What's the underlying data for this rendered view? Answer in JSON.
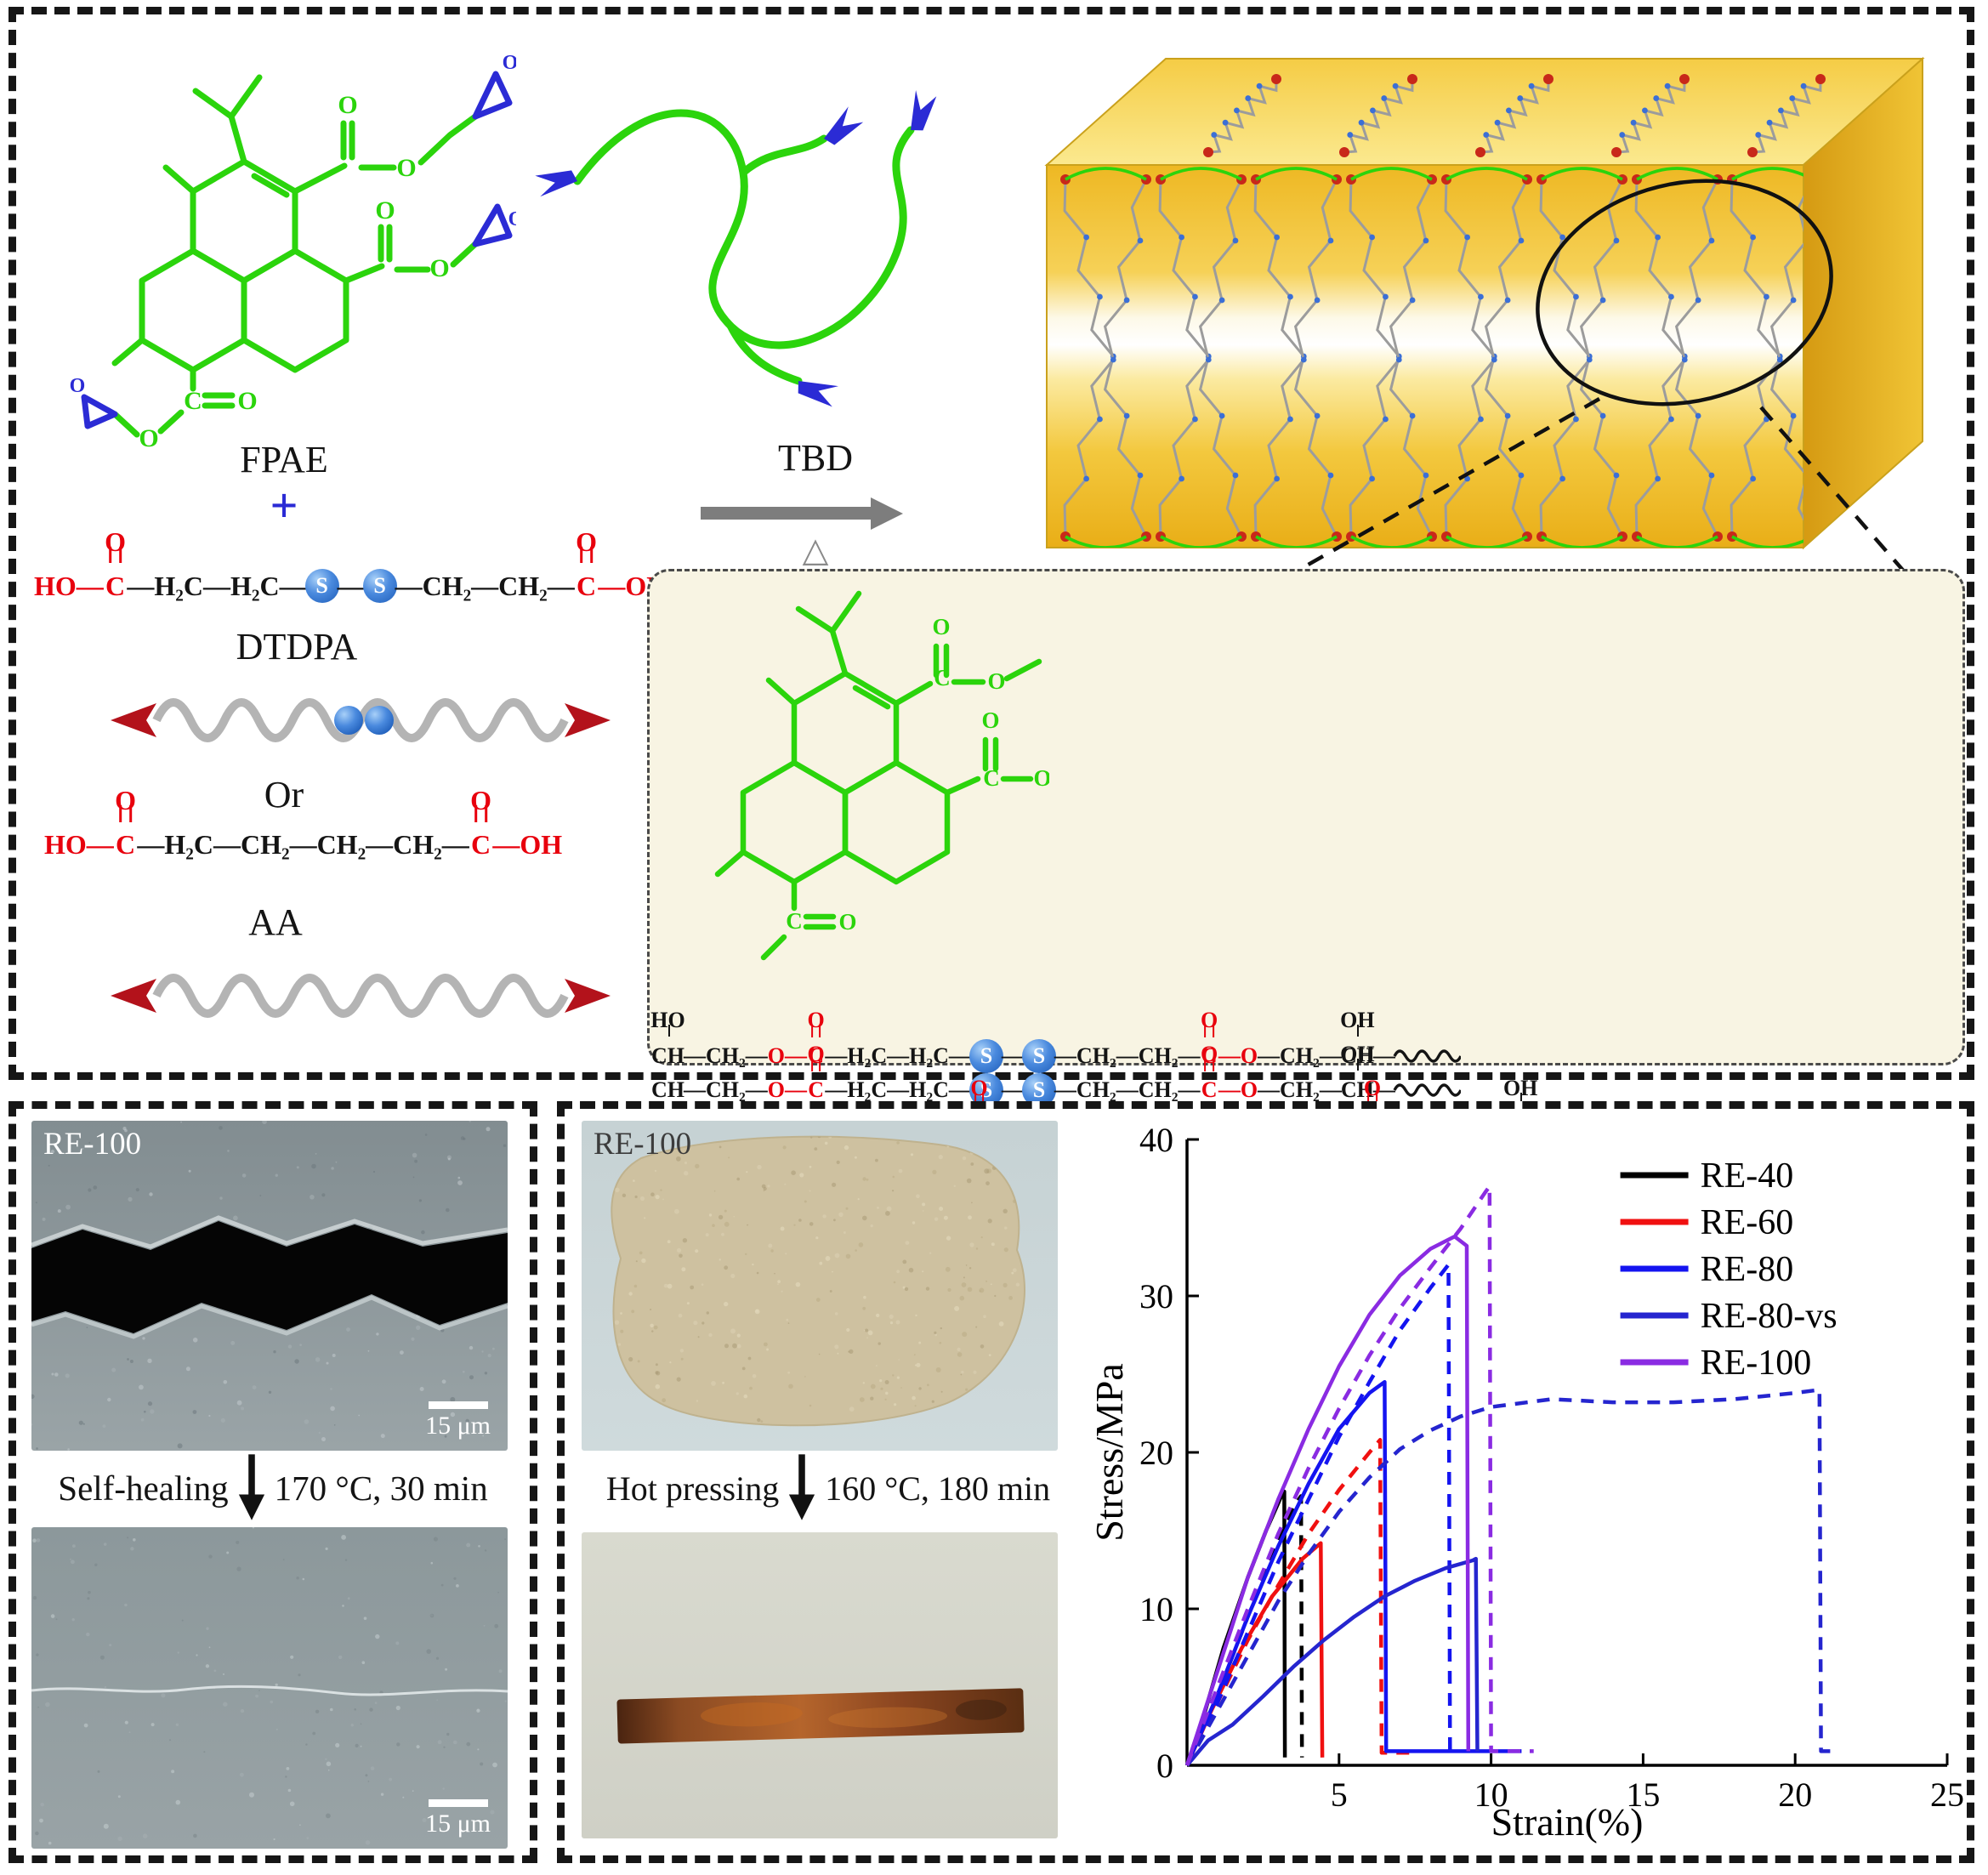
{
  "figure": {
    "top": {
      "fpae_label": "FPAE",
      "plus": "+",
      "tbd_label": "TBD",
      "heat_symbol": "△",
      "dtdpa_label": "DTDPA",
      "or_label": "Or",
      "aa_label": "AA"
    },
    "atoms": {
      "o": "O",
      "c": "C",
      "oh": "OH",
      "ho": "HO",
      "s": "S",
      "bond": "—"
    },
    "formulas": {
      "dtdpa": [
        {
          "k": "tx",
          "t": "HO",
          "c": "r"
        },
        {
          "k": "b",
          "c": "r"
        },
        {
          "k": "co",
          "c": "r"
        },
        {
          "k": "b"
        },
        {
          "k": "tx",
          "t": "H₂C"
        },
        {
          "k": "b"
        },
        {
          "k": "tx",
          "t": "H₂C"
        },
        {
          "k": "b"
        },
        {
          "k": "s"
        },
        {
          "k": "b"
        },
        {
          "k": "s"
        },
        {
          "k": "b"
        },
        {
          "k": "tx",
          "t": "CH₂"
        },
        {
          "k": "b"
        },
        {
          "k": "tx",
          "t": "CH₂"
        },
        {
          "k": "b"
        },
        {
          "k": "co",
          "c": "r"
        },
        {
          "k": "b",
          "c": "r"
        },
        {
          "k": "tx",
          "t": "OH",
          "c": "r"
        }
      ],
      "aa": [
        {
          "k": "tx",
          "t": "HO",
          "c": "r"
        },
        {
          "k": "b",
          "c": "r"
        },
        {
          "k": "co",
          "c": "r"
        },
        {
          "k": "b"
        },
        {
          "k": "tx",
          "t": "H₂C"
        },
        {
          "k": "b"
        },
        {
          "k": "tx",
          "t": "CH₂"
        },
        {
          "k": "b"
        },
        {
          "k": "tx",
          "t": "CH₂"
        },
        {
          "k": "b"
        },
        {
          "k": "tx",
          "t": "CH₂"
        },
        {
          "k": "b"
        },
        {
          "k": "co",
          "c": "r"
        },
        {
          "k": "b",
          "c": "r"
        },
        {
          "k": "tx",
          "t": "OH",
          "c": "r"
        }
      ],
      "chain1": [
        {
          "k": "ohv",
          "d": "up",
          "l": "HO",
          "t": "CH"
        },
        {
          "k": "b"
        },
        {
          "k": "tx",
          "t": "CH₂"
        },
        {
          "k": "b"
        },
        {
          "k": "tx",
          "t": "O",
          "c": "r"
        },
        {
          "k": "b",
          "c": "r"
        },
        {
          "k": "co",
          "c": "r"
        },
        {
          "k": "b"
        },
        {
          "k": "tx",
          "t": "H₂C"
        },
        {
          "k": "b"
        },
        {
          "k": "tx",
          "t": "H₂C"
        },
        {
          "k": "b"
        },
        {
          "k": "s"
        },
        {
          "k": "b"
        },
        {
          "k": "s"
        },
        {
          "k": "b"
        },
        {
          "k": "tx",
          "t": "CH₂"
        },
        {
          "k": "b"
        },
        {
          "k": "tx",
          "t": "CH₂"
        },
        {
          "k": "b"
        },
        {
          "k": "co",
          "c": "r"
        },
        {
          "k": "b",
          "c": "r"
        },
        {
          "k": "tx",
          "t": "O",
          "c": "r"
        },
        {
          "k": "b"
        },
        {
          "k": "tx",
          "t": "CH₂"
        },
        {
          "k": "b"
        },
        {
          "k": "ohv",
          "d": "up",
          "l": "OH",
          "t": "CH"
        },
        {
          "k": "b"
        },
        {
          "k": "wave"
        }
      ],
      "chain2": [
        {
          "k": "ohv",
          "d": "down",
          "l": "HO",
          "t": "CH"
        },
        {
          "k": "b"
        },
        {
          "k": "tx",
          "t": "CH₂"
        },
        {
          "k": "b"
        },
        {
          "k": "tx",
          "t": "O",
          "c": "r"
        },
        {
          "k": "b",
          "c": "r"
        },
        {
          "k": "co",
          "c": "r"
        },
        {
          "k": "b"
        },
        {
          "k": "tx",
          "t": "H₂C"
        },
        {
          "k": "b"
        },
        {
          "k": "tx",
          "t": "H₂C"
        },
        {
          "k": "b"
        },
        {
          "k": "s"
        },
        {
          "k": "b"
        },
        {
          "k": "s"
        },
        {
          "k": "b"
        },
        {
          "k": "tx",
          "t": "CH₂"
        },
        {
          "k": "b"
        },
        {
          "k": "tx",
          "t": "CH₂"
        },
        {
          "k": "b"
        },
        {
          "k": "co",
          "c": "r"
        },
        {
          "k": "b",
          "c": "r"
        },
        {
          "k": "tx",
          "t": "O",
          "c": "r"
        },
        {
          "k": "b"
        },
        {
          "k": "tx",
          "t": "CH₂"
        },
        {
          "k": "b"
        },
        {
          "k": "ohv",
          "d": "up",
          "l": "OH",
          "t": "CH"
        },
        {
          "k": "b"
        },
        {
          "k": "wave"
        }
      ],
      "chain3": [
        {
          "k": "tx",
          "t": "O",
          "c": "g"
        },
        {
          "k": "b"
        },
        {
          "k": "tx",
          "t": "H₂C"
        },
        {
          "k": "b"
        },
        {
          "k": "tx",
          "t": "CH₂"
        },
        {
          "k": "b"
        },
        {
          "k": "ohv",
          "d": "down",
          "l": "HO",
          "t": "CH"
        },
        {
          "k": "b"
        },
        {
          "k": "tx",
          "t": "CH₂"
        },
        {
          "k": "b"
        },
        {
          "k": "tx",
          "t": "O",
          "c": "r"
        },
        {
          "k": "b",
          "c": "r"
        },
        {
          "k": "co",
          "c": "r"
        },
        {
          "k": "b"
        },
        {
          "k": "tx",
          "t": "H₂C"
        },
        {
          "k": "b"
        },
        {
          "k": "tx",
          "t": "H₂C"
        },
        {
          "k": "b"
        },
        {
          "k": "s"
        },
        {
          "k": "b"
        },
        {
          "k": "s"
        },
        {
          "k": "b"
        },
        {
          "k": "tx",
          "t": "CH₂"
        },
        {
          "k": "b"
        },
        {
          "k": "tx",
          "t": "CH₂"
        },
        {
          "k": "b"
        },
        {
          "k": "co",
          "c": "r"
        },
        {
          "k": "b",
          "c": "r"
        },
        {
          "k": "tx",
          "t": "O",
          "c": "r"
        },
        {
          "k": "b"
        },
        {
          "k": "tx",
          "t": "CH₂"
        },
        {
          "k": "b"
        },
        {
          "k": "ohv",
          "d": "up",
          "l": "OH",
          "t": "CH"
        },
        {
          "k": "b"
        },
        {
          "k": "wave"
        }
      ]
    },
    "bottom_left": {
      "sem_label": "RE-100",
      "scale_bar": "15 μm",
      "healing_label": "Self-healing",
      "healing_condition": "170 °C, 30 min"
    },
    "bottom_right": {
      "photo_label": "RE-100",
      "pressing_label": "Hot pressing",
      "pressing_condition": "160 °C, 180 min"
    }
  },
  "colors": {
    "green": "#2bd40c",
    "blue": "#2b2bd5",
    "red": "#e8000d",
    "dark_red": "#b3121b",
    "sulfur_blue": "#2f6fd0",
    "network_yellow": "#f2c12e"
  },
  "chart_data": {
    "type": "line",
    "title": "",
    "xlabel": "Strain(%)",
    "ylabel": "Stress/MPa",
    "xlim": [
      0,
      25
    ],
    "ylim": [
      0,
      40
    ],
    "x_ticks": [
      5,
      10,
      15,
      20,
      25
    ],
    "y_ticks": [
      0,
      10,
      20,
      30,
      40
    ],
    "grid": false,
    "legend_position": "top-right",
    "legend": [
      {
        "label": "RE-40",
        "color": "#000000"
      },
      {
        "label": "RE-60",
        "color": "#f01010"
      },
      {
        "label": "RE-80",
        "color": "#1414f0"
      },
      {
        "label": "RE-80-vs",
        "color": "#2525cf"
      },
      {
        "label": "RE-100",
        "color": "#8a2be2"
      }
    ],
    "series": [
      {
        "sample": "RE-40",
        "style": "solid",
        "color": "#000000",
        "points": [
          [
            0,
            0
          ],
          [
            0.6,
            3.5
          ],
          [
            1.2,
            7.5
          ],
          [
            2,
            12
          ],
          [
            2.6,
            15
          ],
          [
            3.1,
            17.2
          ],
          [
            3.2,
            17.5
          ],
          [
            3.22,
            0.5
          ]
        ]
      },
      {
        "sample": "RE-40",
        "style": "dashed",
        "color": "#000000",
        "points": [
          [
            0,
            0
          ],
          [
            0.8,
            3.5
          ],
          [
            1.6,
            7.5
          ],
          [
            2.4,
            11.5
          ],
          [
            3.1,
            14.8
          ],
          [
            3.6,
            16.8
          ],
          [
            3.75,
            17.2
          ],
          [
            3.78,
            0.5
          ]
        ]
      },
      {
        "sample": "RE-60",
        "style": "solid",
        "color": "#f01010",
        "points": [
          [
            0,
            0
          ],
          [
            0.8,
            3.5
          ],
          [
            1.8,
            7.5
          ],
          [
            2.8,
            10.8
          ],
          [
            3.8,
            13.2
          ],
          [
            4.4,
            14.2
          ],
          [
            4.45,
            0.5
          ]
        ]
      },
      {
        "sample": "RE-60",
        "style": "dashed",
        "color": "#f01010",
        "points": [
          [
            0,
            0
          ],
          [
            1,
            4
          ],
          [
            2,
            8
          ],
          [
            3,
            11.5
          ],
          [
            4,
            14.8
          ],
          [
            5,
            17.6
          ],
          [
            6,
            20
          ],
          [
            6.35,
            20.8
          ],
          [
            6.4,
            0.8
          ],
          [
            7.6,
            0.8
          ]
        ]
      },
      {
        "sample": "RE-80",
        "style": "solid",
        "color": "#1414f0",
        "points": [
          [
            0,
            0
          ],
          [
            1,
            4.5
          ],
          [
            2,
            9.5
          ],
          [
            3,
            14
          ],
          [
            4,
            18
          ],
          [
            5,
            21.5
          ],
          [
            6,
            23.8
          ],
          [
            6.5,
            24.5
          ],
          [
            6.55,
            0.9
          ],
          [
            11,
            0.9
          ]
        ]
      },
      {
        "sample": "RE-80",
        "style": "dashed",
        "color": "#1414f0",
        "points": [
          [
            0,
            0
          ],
          [
            1,
            4
          ],
          [
            2,
            8.5
          ],
          [
            3,
            13
          ],
          [
            4,
            17
          ],
          [
            5,
            21
          ],
          [
            6,
            24.5
          ],
          [
            7,
            27.8
          ],
          [
            8,
            30.5
          ],
          [
            8.6,
            32
          ],
          [
            8.65,
            0.8
          ]
        ]
      },
      {
        "sample": "RE-80-vs",
        "style": "solid",
        "color": "#2525cf",
        "points": [
          [
            0,
            0
          ],
          [
            0.7,
            1.6
          ],
          [
            1.5,
            2.6
          ],
          [
            2.5,
            4.4
          ],
          [
            3.5,
            6.3
          ],
          [
            4.5,
            8
          ],
          [
            5.5,
            9.5
          ],
          [
            6.5,
            10.8
          ],
          [
            7.5,
            11.8
          ],
          [
            8.5,
            12.6
          ],
          [
            9.4,
            13.1
          ],
          [
            9.5,
            13.2
          ],
          [
            9.55,
            0.9
          ]
        ]
      },
      {
        "sample": "RE-80-vs",
        "style": "dashed",
        "color": "#2525cf",
        "points": [
          [
            0,
            0
          ],
          [
            1,
            3.5
          ],
          [
            2,
            7
          ],
          [
            3,
            10.5
          ],
          [
            4,
            13.5
          ],
          [
            5,
            16.2
          ],
          [
            6,
            18.4
          ],
          [
            7,
            20.2
          ],
          [
            8,
            21.4
          ],
          [
            9,
            22.3
          ],
          [
            10,
            22.9
          ],
          [
            12,
            23.4
          ],
          [
            14,
            23.2
          ],
          [
            16,
            23.2
          ],
          [
            18,
            23.4
          ],
          [
            20,
            23.8
          ],
          [
            20.8,
            24
          ],
          [
            20.85,
            0.9
          ],
          [
            21.4,
            0.9
          ]
        ]
      },
      {
        "sample": "RE-100",
        "style": "solid",
        "color": "#8a2be2",
        "points": [
          [
            0,
            0
          ],
          [
            1,
            6
          ],
          [
            2,
            12
          ],
          [
            3,
            17
          ],
          [
            4,
            21.5
          ],
          [
            5,
            25.5
          ],
          [
            6,
            28.8
          ],
          [
            7,
            31.3
          ],
          [
            8,
            33
          ],
          [
            8.8,
            33.8
          ],
          [
            9.2,
            33.2
          ],
          [
            9.25,
            0.9
          ]
        ]
      },
      {
        "sample": "RE-100",
        "style": "dashed",
        "color": "#8a2be2",
        "points": [
          [
            0,
            0
          ],
          [
            1,
            5
          ],
          [
            2,
            10
          ],
          [
            3,
            14.8
          ],
          [
            4,
            19
          ],
          [
            5,
            22.8
          ],
          [
            6,
            26.2
          ],
          [
            7,
            29.2
          ],
          [
            8,
            31.8
          ],
          [
            9,
            34.3
          ],
          [
            9.8,
            36.6
          ],
          [
            9.95,
            37
          ],
          [
            10,
            0.9
          ],
          [
            11.4,
            0.9
          ]
        ]
      }
    ]
  }
}
